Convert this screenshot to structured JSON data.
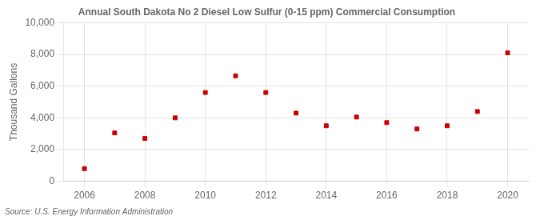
{
  "chart_data": {
    "type": "scatter",
    "title": "Annual South Dakota No 2 Diesel Low Sulfur (0-15 ppm) Commercial Consumption",
    "ylabel": "Thousand Gallons",
    "annotation": "Source: U.S. Energy Information Administration",
    "x": [
      2006,
      2007,
      2008,
      2009,
      2010,
      2011,
      2012,
      2013,
      2014,
      2015,
      2016,
      2017,
      2018,
      2019,
      2020
    ],
    "values": [
      800,
      3050,
      2700,
      4000,
      5600,
      6650,
      5600,
      4300,
      3500,
      4050,
      3700,
      3300,
      3500,
      4400,
      8100
    ],
    "color": "#cc0000",
    "marker": "square",
    "xlim": [
      2005.3,
      2020.7
    ],
    "xticks": [
      2006,
      2008,
      2010,
      2012,
      2014,
      2016,
      2018,
      2020
    ],
    "ylim": [
      0,
      10000
    ],
    "yticks": [
      0,
      {
        "value": 2000,
        "label": "2,000"
      },
      {
        "value": 4000,
        "label": "4,000"
      },
      {
        "value": 6000,
        "label": "6,000"
      },
      {
        "value": 8000,
        "label": "8,000"
      },
      {
        "value": 10000,
        "label": "10,000"
      }
    ],
    "grid": true
  }
}
